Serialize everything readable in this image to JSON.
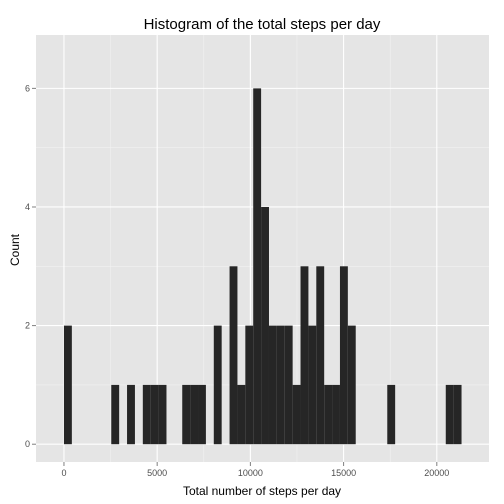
{
  "chart_data": {
    "type": "bar",
    "title": "Histogram of the total steps per day",
    "xlabel": "Total number of steps per day",
    "ylabel": "Count",
    "xlim": [
      -1500,
      22800
    ],
    "ylim": [
      -0.3,
      6.9
    ],
    "xticks": [
      0,
      5000,
      10000,
      15000,
      20000
    ],
    "xtick_labels": [
      "0",
      "5000",
      "10000",
      "15000",
      "20000"
    ],
    "yticks": [
      0,
      2,
      4,
      6
    ],
    "ytick_labels": [
      "0",
      "2",
      "4",
      "6"
    ],
    "binwidth": 423,
    "grid": true,
    "colors": {
      "panel_background": "#e5e5e5",
      "grid_major": "#ffffff",
      "grid_minor": "#f2f2f2",
      "bar_fill": "#262626"
    },
    "bins": [
      {
        "x0": 0,
        "x1": 423,
        "count": 2
      },
      {
        "x0": 2538,
        "x1": 2961,
        "count": 1
      },
      {
        "x0": 3384,
        "x1": 3807,
        "count": 1
      },
      {
        "x0": 4230,
        "x1": 4653,
        "count": 1
      },
      {
        "x0": 4653,
        "x1": 5076,
        "count": 1
      },
      {
        "x0": 5076,
        "x1": 5499,
        "count": 1
      },
      {
        "x0": 6345,
        "x1": 6768,
        "count": 1
      },
      {
        "x0": 6768,
        "x1": 7191,
        "count": 1
      },
      {
        "x0": 7191,
        "x1": 7614,
        "count": 1
      },
      {
        "x0": 8037,
        "x1": 8460,
        "count": 2
      },
      {
        "x0": 8883,
        "x1": 9306,
        "count": 3
      },
      {
        "x0": 9306,
        "x1": 9729,
        "count": 1
      },
      {
        "x0": 9729,
        "x1": 10152,
        "count": 2
      },
      {
        "x0": 10152,
        "x1": 10575,
        "count": 6
      },
      {
        "x0": 10575,
        "x1": 10998,
        "count": 4
      },
      {
        "x0": 10998,
        "x1": 11421,
        "count": 2
      },
      {
        "x0": 11421,
        "x1": 11844,
        "count": 2
      },
      {
        "x0": 11844,
        "x1": 12267,
        "count": 2
      },
      {
        "x0": 12267,
        "x1": 12690,
        "count": 1
      },
      {
        "x0": 12690,
        "x1": 13113,
        "count": 3
      },
      {
        "x0": 13113,
        "x1": 13536,
        "count": 2
      },
      {
        "x0": 13536,
        "x1": 13959,
        "count": 3
      },
      {
        "x0": 13959,
        "x1": 14382,
        "count": 1
      },
      {
        "x0": 14382,
        "x1": 14805,
        "count": 1
      },
      {
        "x0": 14805,
        "x1": 15228,
        "count": 3
      },
      {
        "x0": 15228,
        "x1": 15651,
        "count": 2
      },
      {
        "x0": 17343,
        "x1": 17766,
        "count": 1
      },
      {
        "x0": 20481,
        "x1": 20904,
        "count": 1
      },
      {
        "x0": 20904,
        "x1": 21327,
        "count": 1
      }
    ]
  }
}
